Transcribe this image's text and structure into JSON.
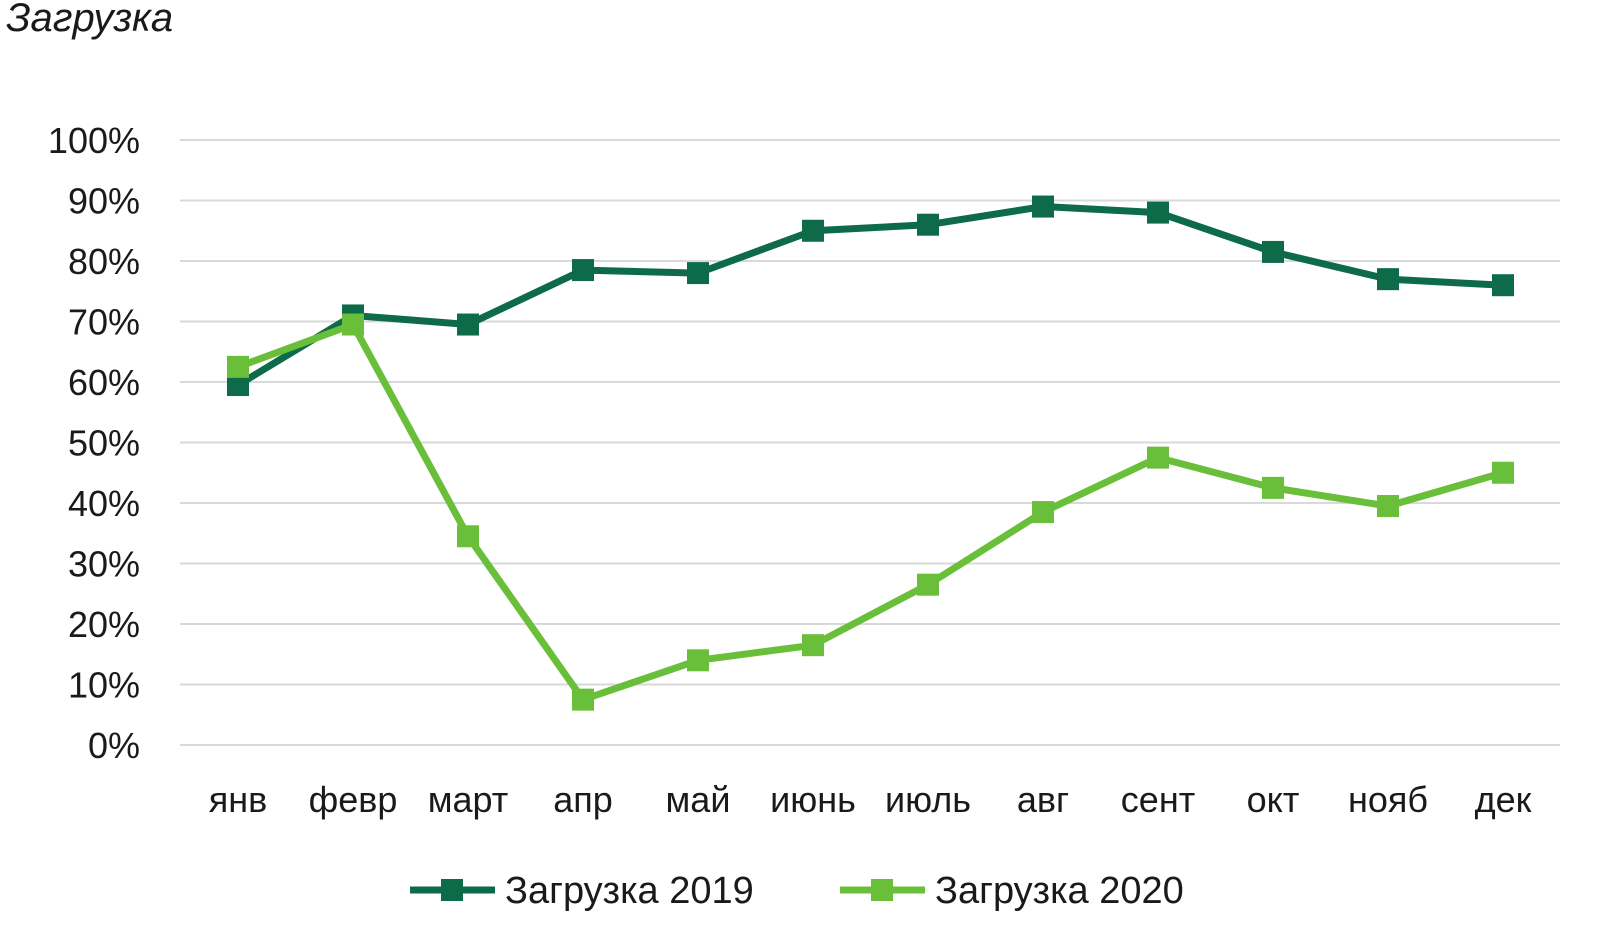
{
  "chart_data": {
    "type": "line",
    "title": "Загрузка",
    "xlabel": "",
    "ylabel": "",
    "categories": [
      "янв",
      "февр",
      "март",
      "апр",
      "май",
      "июнь",
      "июль",
      "авг",
      "сент",
      "окт",
      "нояб",
      "дек"
    ],
    "ylim": [
      0,
      100
    ],
    "yticks": [
      "0%",
      "10%",
      "20%",
      "30%",
      "40%",
      "50%",
      "60%",
      "70%",
      "80%",
      "90%",
      "100%"
    ],
    "grid": true,
    "legend_position": "bottom",
    "series": [
      {
        "name": "Загрузка 2019",
        "color": "#0e6b4a",
        "marker": "square",
        "values": [
          59.5,
          71,
          69.5,
          78.5,
          78,
          85,
          86,
          89,
          88,
          81.5,
          77,
          76
        ]
      },
      {
        "name": "Загрузка 2020",
        "color": "#6abf3a",
        "marker": "square",
        "values": [
          62.5,
          69.5,
          34.5,
          7.5,
          14,
          16.5,
          26.5,
          38.5,
          47.5,
          42.5,
          39.5,
          45
        ]
      }
    ]
  }
}
